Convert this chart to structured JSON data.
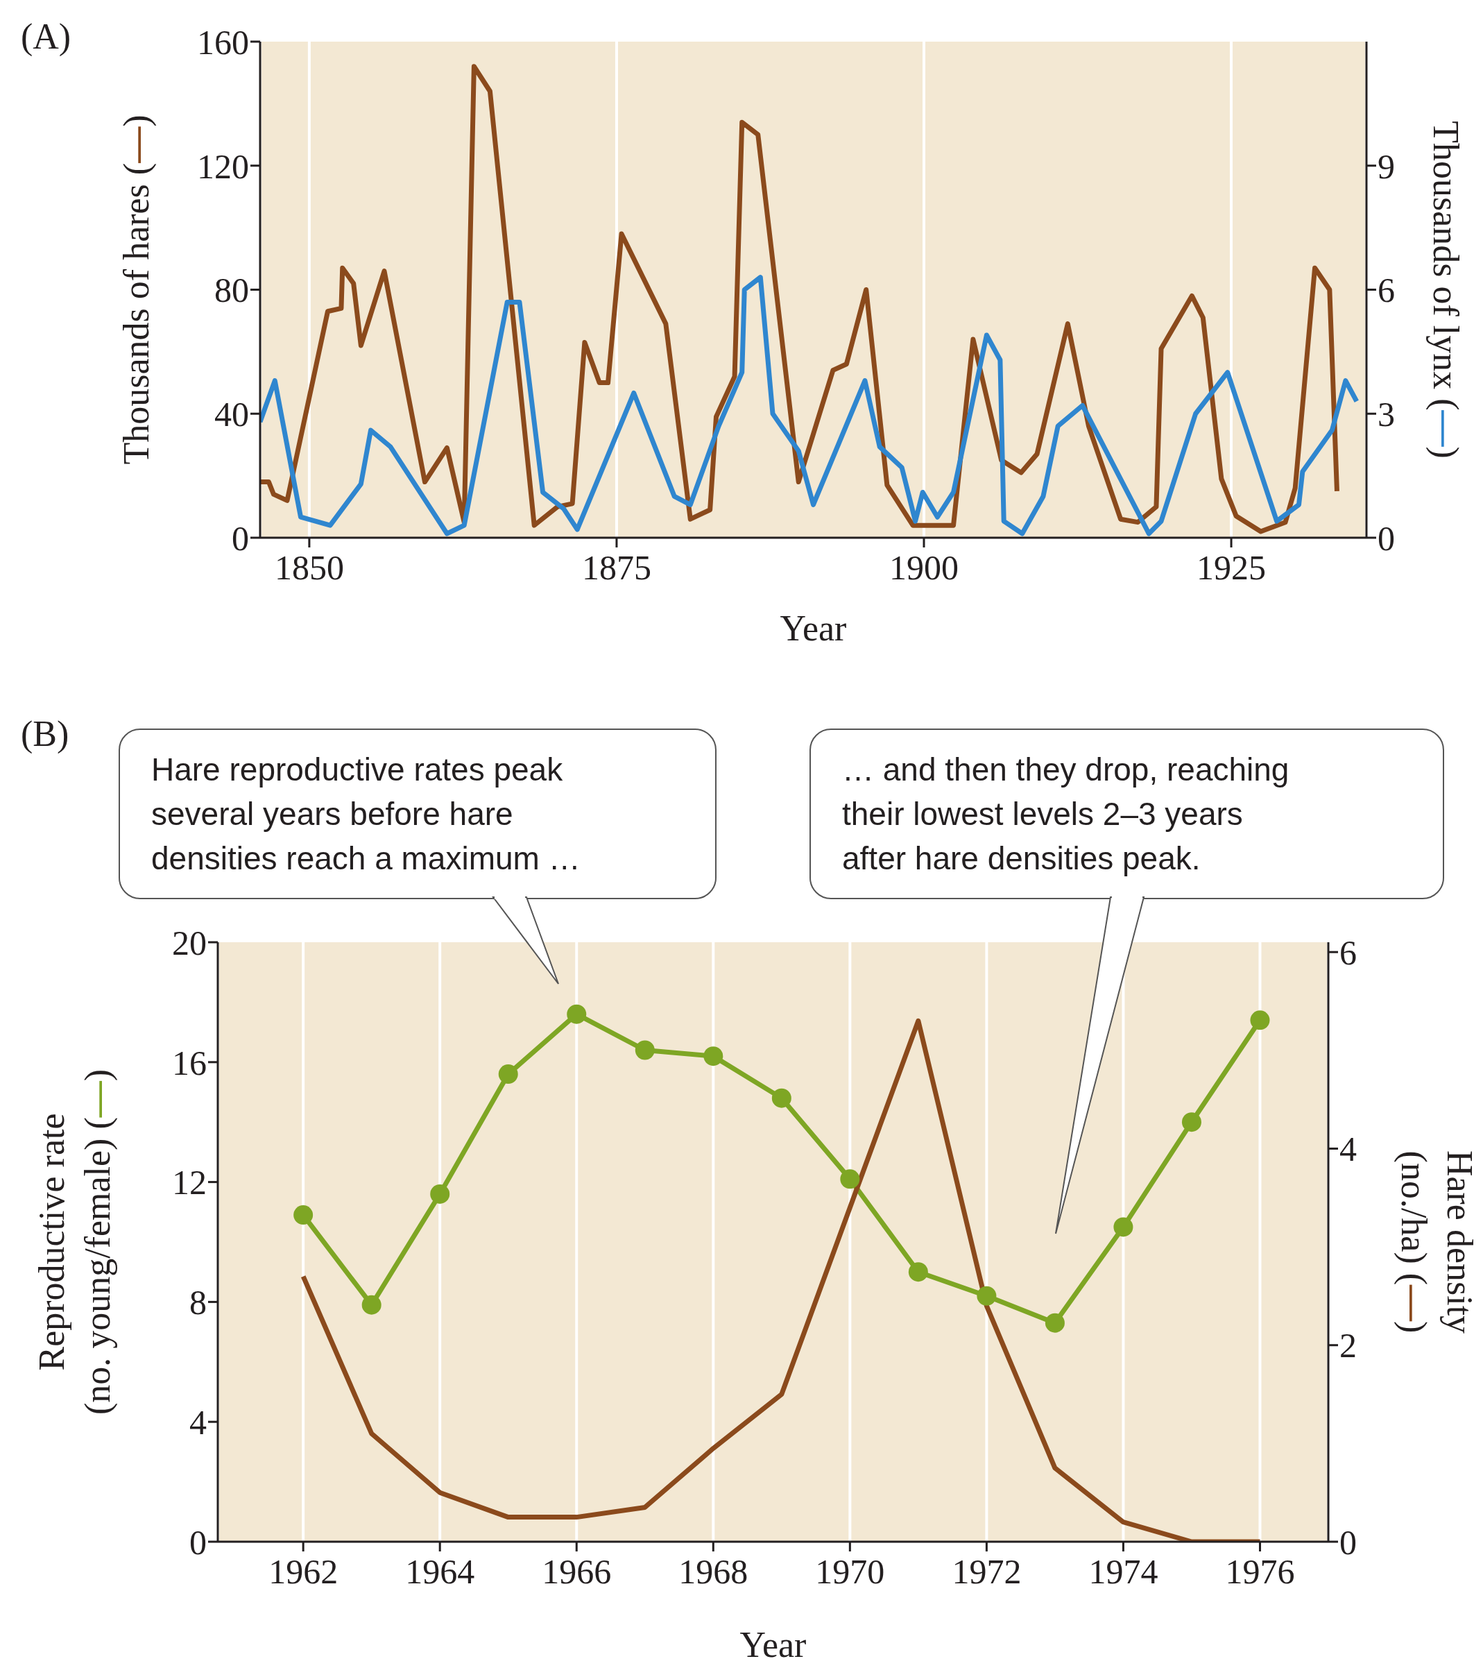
{
  "chart_data": [
    {
      "type": "line",
      "title": "(A)",
      "xlabel": "Year",
      "ylabel": "Thousands of hares (—)",
      "y2label": "Thousands of lynx (—)",
      "xlim": [
        1846,
        1936
      ],
      "xticks": [
        1850,
        1875,
        1900,
        1925
      ],
      "ylim": [
        0,
        160
      ],
      "yticks": [
        0,
        40,
        80,
        120,
        160
      ],
      "y2lim": [
        0,
        12
      ],
      "y2ticks": [
        0,
        3,
        6,
        9
      ],
      "grid": "x",
      "marker": "none",
      "series": [
        {
          "color": "#8b4a1c",
          "x": [
            1846,
            1846.7,
            1847.1,
            1848.2,
            1851.5,
            1852.6,
            1852.7,
            1853.6,
            1854.2,
            1856.1,
            1859.4,
            1861.2,
            1862.6,
            1863.4,
            1864.7,
            1868.3,
            1870.2,
            1871.4,
            1872.4,
            1873.6,
            1874.3,
            1875.4,
            1879,
            1881,
            1882.6,
            1883.1,
            1884.6,
            1885.2,
            1886.5,
            1889.8,
            1892.6,
            1893.7,
            1895.3,
            1897,
            1899.1,
            1902.4,
            1904,
            1906.3,
            1907.9,
            1909.2,
            1911.7,
            1913.4,
            1916,
            1917.4,
            1918.9,
            1919.3,
            1921.8,
            1922.7,
            1924.2,
            1925.4,
            1927.4,
            1929.4,
            1930.2,
            1931.8,
            1933,
            1933.6
          ],
          "values": [
            18,
            18,
            14,
            12,
            73,
            74,
            87,
            82,
            62,
            86,
            18,
            29,
            5,
            152,
            144,
            4,
            10,
            11,
            63,
            50,
            50,
            98,
            69,
            6,
            9,
            39,
            52,
            134,
            130,
            18,
            54,
            56,
            80,
            17,
            4,
            4,
            64,
            25,
            21,
            27,
            69,
            36,
            6,
            5,
            10,
            61,
            78,
            71,
            19,
            7,
            2,
            5,
            16,
            87,
            80,
            15
          ]
        },
        {
          "color": "#2f86cf",
          "axis": "y2",
          "x": [
            1846,
            1847.2,
            1849.3,
            1851.7,
            1854.2,
            1855,
            1856.6,
            1861.2,
            1862.6,
            1866.1,
            1867.1,
            1869,
            1870.7,
            1871.8,
            1876.4,
            1879.7,
            1881,
            1883.3,
            1885.2,
            1885.4,
            1886.7,
            1887.7,
            1889.8,
            1891,
            1895.2,
            1896.4,
            1898.2,
            1899.3,
            1899.9,
            1901.1,
            1902.4,
            1905.1,
            1906.2,
            1906.5,
            1908,
            1909.7,
            1910.9,
            1912.9,
            1918.3,
            1919.3,
            1922.1,
            1924.7,
            1928.7,
            1930.5,
            1930.8,
            1933.2,
            1934.3,
            1935.2
          ],
          "values": [
            2.8,
            3.8,
            0.5,
            0.3,
            1.3,
            2.6,
            2.2,
            0.1,
            0.3,
            5.7,
            5.7,
            1.1,
            0.7,
            0.2,
            3.5,
            1.0,
            0.8,
            2.7,
            4.0,
            6.0,
            6.3,
            3.0,
            2.1,
            0.8,
            3.8,
            2.2,
            1.7,
            0.4,
            1.1,
            0.5,
            1.1,
            4.9,
            4.3,
            0.4,
            0.1,
            1.0,
            2.7,
            3.2,
            0.1,
            0.4,
            3.0,
            4.0,
            0.4,
            0.8,
            1.6,
            2.6,
            3.8,
            3.3
          ]
        }
      ]
    },
    {
      "type": "line",
      "title": "(B)",
      "xlabel": "Year",
      "ylabel": "Reproductive rate\n(no. young/female) (—)",
      "y2label": "Hare density\n(no./ha) (—)",
      "xlim": [
        1960.75,
        1977
      ],
      "xticks": [
        1962,
        1964,
        1966,
        1968,
        1970,
        1972,
        1974,
        1976
      ],
      "ylim": [
        0,
        20
      ],
      "yticks": [
        0,
        4,
        8,
        12,
        16,
        20
      ],
      "y2lim": [
        0,
        6.1
      ],
      "y2ticks": [
        0,
        2,
        4,
        6
      ],
      "grid": "x",
      "annotations": [
        "Hare reproductive rates peak several years before hare densities reach a maximum …",
        "… and then they drop, reaching their lowest levels 2–3 years after hare densities peak."
      ],
      "series": [
        {
          "color": "#7ea624",
          "marker": "circle",
          "x": [
            1962,
            1963,
            1964,
            1965,
            1966,
            1967,
            1968,
            1969,
            1970,
            1971,
            1972,
            1973,
            1974,
            1975,
            1976
          ],
          "values": [
            10.9,
            7.9,
            11.6,
            15.6,
            17.6,
            16.4,
            16.2,
            14.8,
            12.1,
            9.0,
            8.2,
            7.3,
            10.5,
            14.0,
            17.4
          ]
        },
        {
          "color": "#8b4a1c",
          "marker": "none",
          "axis": "y2",
          "x": [
            1962,
            1963,
            1964,
            1965,
            1966,
            1967,
            1968,
            1969,
            1970,
            1971,
            1972,
            1973,
            1974,
            1975,
            1976
          ],
          "values": [
            2.7,
            1.1,
            0.5,
            0.25,
            0.25,
            0.35,
            0.95,
            1.5,
            3.4,
            5.3,
            2.4,
            0.75,
            0.2,
            0,
            0
          ]
        }
      ]
    }
  ]
}
